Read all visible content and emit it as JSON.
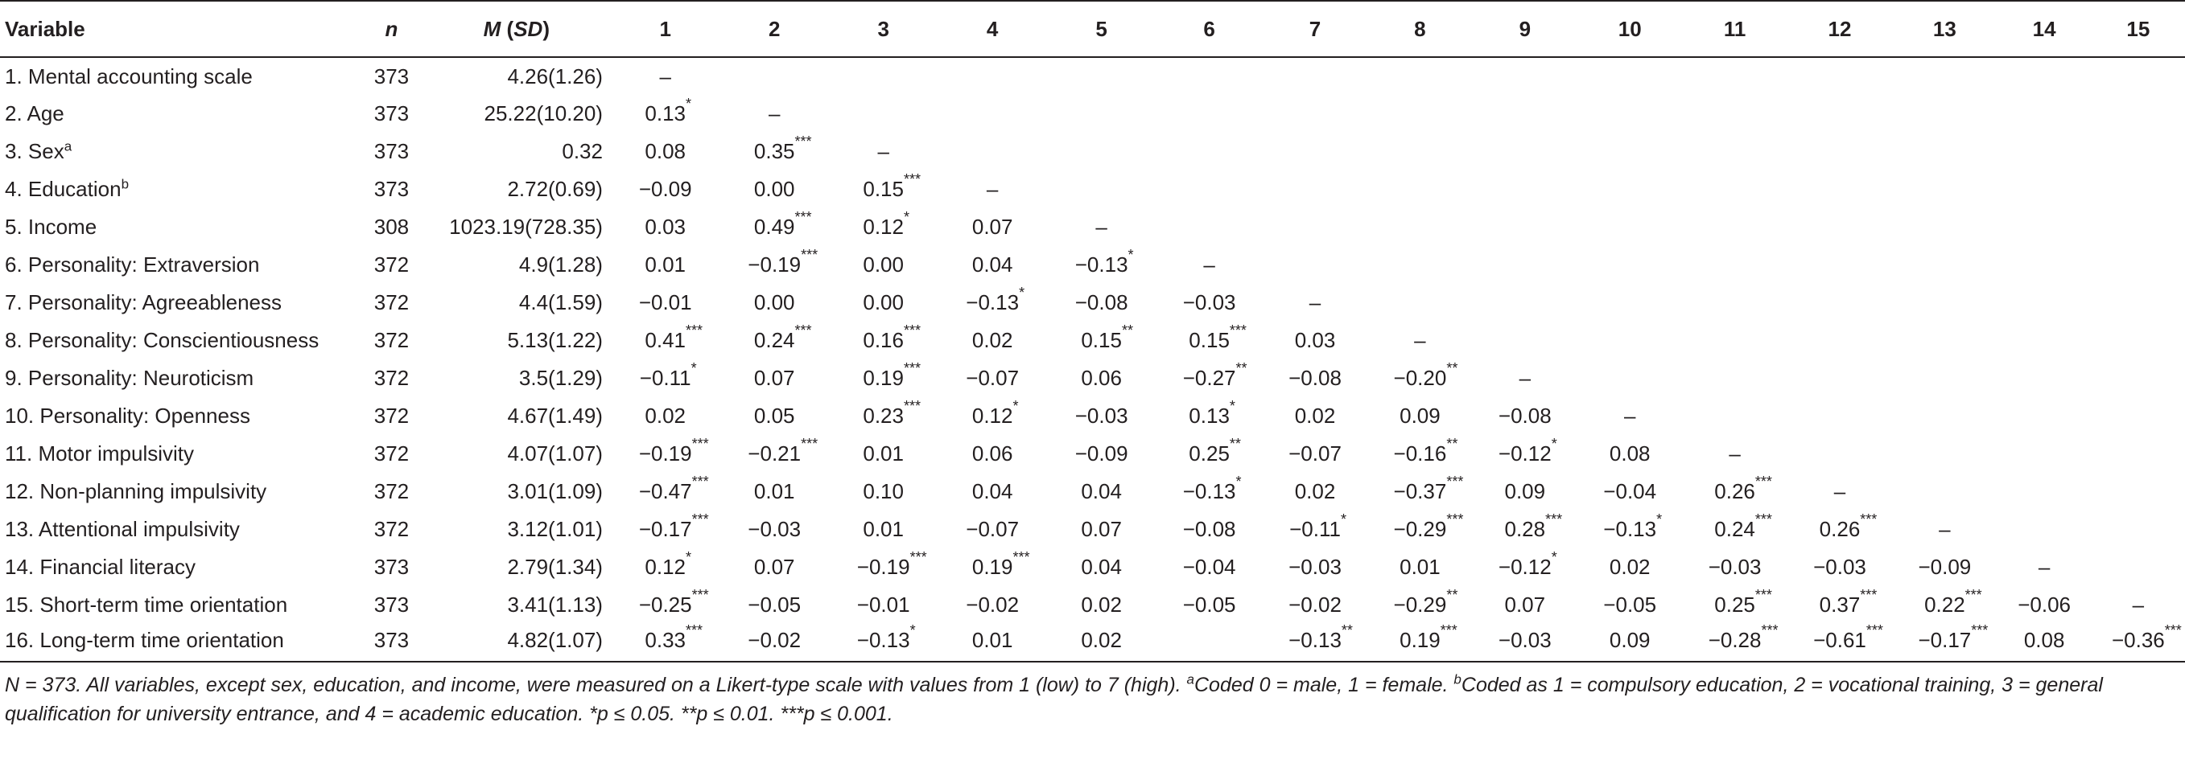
{
  "table": {
    "headers": {
      "variable": "Variable",
      "n": "n",
      "m_italic": "M",
      "sd_open": " (",
      "sd_italic": "SD",
      "sd_close": ")",
      "cols": [
        "1",
        "2",
        "3",
        "4",
        "5",
        "6",
        "7",
        "8",
        "9",
        "10",
        "11",
        "12",
        "13",
        "14",
        "15"
      ]
    },
    "rows": [
      {
        "label": "1. Mental accounting scale",
        "sup": "",
        "n": "373",
        "msd": "4.26(1.26)",
        "cells": [
          {
            "v": "–",
            "s": ""
          },
          {
            "v": "",
            "s": ""
          },
          {
            "v": "",
            "s": ""
          },
          {
            "v": "",
            "s": ""
          },
          {
            "v": "",
            "s": ""
          },
          {
            "v": "",
            "s": ""
          },
          {
            "v": "",
            "s": ""
          },
          {
            "v": "",
            "s": ""
          },
          {
            "v": "",
            "s": ""
          },
          {
            "v": "",
            "s": ""
          },
          {
            "v": "",
            "s": ""
          },
          {
            "v": "",
            "s": ""
          },
          {
            "v": "",
            "s": ""
          },
          {
            "v": "",
            "s": ""
          },
          {
            "v": "",
            "s": ""
          }
        ]
      },
      {
        "label": "2. Age",
        "sup": "",
        "n": "373",
        "msd": "25.22(10.20)",
        "cells": [
          {
            "v": "0.13",
            "s": "*"
          },
          {
            "v": "–",
            "s": ""
          },
          {
            "v": "",
            "s": ""
          },
          {
            "v": "",
            "s": ""
          },
          {
            "v": "",
            "s": ""
          },
          {
            "v": "",
            "s": ""
          },
          {
            "v": "",
            "s": ""
          },
          {
            "v": "",
            "s": ""
          },
          {
            "v": "",
            "s": ""
          },
          {
            "v": "",
            "s": ""
          },
          {
            "v": "",
            "s": ""
          },
          {
            "v": "",
            "s": ""
          },
          {
            "v": "",
            "s": ""
          },
          {
            "v": "",
            "s": ""
          },
          {
            "v": "",
            "s": ""
          }
        ]
      },
      {
        "label": "3. Sex",
        "sup": "a",
        "n": "373",
        "msd": "0.32",
        "cells": [
          {
            "v": "0.08",
            "s": ""
          },
          {
            "v": "0.35",
            "s": "***"
          },
          {
            "v": "–",
            "s": ""
          },
          {
            "v": "",
            "s": ""
          },
          {
            "v": "",
            "s": ""
          },
          {
            "v": "",
            "s": ""
          },
          {
            "v": "",
            "s": ""
          },
          {
            "v": "",
            "s": ""
          },
          {
            "v": "",
            "s": ""
          },
          {
            "v": "",
            "s": ""
          },
          {
            "v": "",
            "s": ""
          },
          {
            "v": "",
            "s": ""
          },
          {
            "v": "",
            "s": ""
          },
          {
            "v": "",
            "s": ""
          },
          {
            "v": "",
            "s": ""
          }
        ]
      },
      {
        "label": "4. Education",
        "sup": "b",
        "n": "373",
        "msd": "2.72(0.69)",
        "cells": [
          {
            "v": "−0.09",
            "s": ""
          },
          {
            "v": "0.00",
            "s": ""
          },
          {
            "v": "0.15",
            "s": "***"
          },
          {
            "v": "–",
            "s": ""
          },
          {
            "v": "",
            "s": ""
          },
          {
            "v": "",
            "s": ""
          },
          {
            "v": "",
            "s": ""
          },
          {
            "v": "",
            "s": ""
          },
          {
            "v": "",
            "s": ""
          },
          {
            "v": "",
            "s": ""
          },
          {
            "v": "",
            "s": ""
          },
          {
            "v": "",
            "s": ""
          },
          {
            "v": "",
            "s": ""
          },
          {
            "v": "",
            "s": ""
          },
          {
            "v": "",
            "s": ""
          }
        ]
      },
      {
        "label": "5. Income",
        "sup": "",
        "n": "308",
        "msd": "1023.19(728.35)",
        "cells": [
          {
            "v": "0.03",
            "s": ""
          },
          {
            "v": "0.49",
            "s": "***"
          },
          {
            "v": "0.12",
            "s": "*"
          },
          {
            "v": "0.07",
            "s": ""
          },
          {
            "v": "–",
            "s": ""
          },
          {
            "v": "",
            "s": ""
          },
          {
            "v": "",
            "s": ""
          },
          {
            "v": "",
            "s": ""
          },
          {
            "v": "",
            "s": ""
          },
          {
            "v": "",
            "s": ""
          },
          {
            "v": "",
            "s": ""
          },
          {
            "v": "",
            "s": ""
          },
          {
            "v": "",
            "s": ""
          },
          {
            "v": "",
            "s": ""
          },
          {
            "v": "",
            "s": ""
          }
        ]
      },
      {
        "label": "6. Personality: Extraversion",
        "sup": "",
        "n": "372",
        "msd": "4.9(1.28)",
        "cells": [
          {
            "v": "0.01",
            "s": ""
          },
          {
            "v": "−0.19",
            "s": "***"
          },
          {
            "v": "0.00",
            "s": ""
          },
          {
            "v": "0.04",
            "s": ""
          },
          {
            "v": "−0.13",
            "s": "*"
          },
          {
            "v": "–",
            "s": ""
          },
          {
            "v": "",
            "s": ""
          },
          {
            "v": "",
            "s": ""
          },
          {
            "v": "",
            "s": ""
          },
          {
            "v": "",
            "s": ""
          },
          {
            "v": "",
            "s": ""
          },
          {
            "v": "",
            "s": ""
          },
          {
            "v": "",
            "s": ""
          },
          {
            "v": "",
            "s": ""
          },
          {
            "v": "",
            "s": ""
          }
        ]
      },
      {
        "label": "7. Personality: Agreeableness",
        "sup": "",
        "n": "372",
        "msd": "4.4(1.59)",
        "cells": [
          {
            "v": "−0.01",
            "s": ""
          },
          {
            "v": "0.00",
            "s": ""
          },
          {
            "v": "0.00",
            "s": ""
          },
          {
            "v": "−0.13",
            "s": "*"
          },
          {
            "v": "−0.08",
            "s": ""
          },
          {
            "v": "−0.03",
            "s": ""
          },
          {
            "v": "–",
            "s": ""
          },
          {
            "v": "",
            "s": ""
          },
          {
            "v": "",
            "s": ""
          },
          {
            "v": "",
            "s": ""
          },
          {
            "v": "",
            "s": ""
          },
          {
            "v": "",
            "s": ""
          },
          {
            "v": "",
            "s": ""
          },
          {
            "v": "",
            "s": ""
          },
          {
            "v": "",
            "s": ""
          }
        ]
      },
      {
        "label": "8. Personality: Conscientiousness",
        "sup": "",
        "n": "372",
        "msd": "5.13(1.22)",
        "cells": [
          {
            "v": "0.41",
            "s": "***"
          },
          {
            "v": "0.24",
            "s": "***"
          },
          {
            "v": "0.16",
            "s": "***"
          },
          {
            "v": "0.02",
            "s": ""
          },
          {
            "v": "0.15",
            "s": "**"
          },
          {
            "v": "0.15",
            "s": "***"
          },
          {
            "v": "0.03",
            "s": ""
          },
          {
            "v": "–",
            "s": ""
          },
          {
            "v": "",
            "s": ""
          },
          {
            "v": "",
            "s": ""
          },
          {
            "v": "",
            "s": ""
          },
          {
            "v": "",
            "s": ""
          },
          {
            "v": "",
            "s": ""
          },
          {
            "v": "",
            "s": ""
          },
          {
            "v": "",
            "s": ""
          }
        ]
      },
      {
        "label": "9. Personality: Neuroticism",
        "sup": "",
        "n": "372",
        "msd": "3.5(1.29)",
        "cells": [
          {
            "v": "−0.11",
            "s": "*"
          },
          {
            "v": "0.07",
            "s": ""
          },
          {
            "v": "0.19",
            "s": "***"
          },
          {
            "v": "−0.07",
            "s": ""
          },
          {
            "v": "0.06",
            "s": ""
          },
          {
            "v": "−0.27",
            "s": "**"
          },
          {
            "v": "−0.08",
            "s": ""
          },
          {
            "v": "−0.20",
            "s": "**"
          },
          {
            "v": "–",
            "s": ""
          },
          {
            "v": "",
            "s": ""
          },
          {
            "v": "",
            "s": ""
          },
          {
            "v": "",
            "s": ""
          },
          {
            "v": "",
            "s": ""
          },
          {
            "v": "",
            "s": ""
          },
          {
            "v": "",
            "s": ""
          }
        ]
      },
      {
        "label": "10. Personality: Openness",
        "sup": "",
        "n": "372",
        "msd": "4.67(1.49)",
        "cells": [
          {
            "v": "0.02",
            "s": ""
          },
          {
            "v": "0.05",
            "s": ""
          },
          {
            "v": "0.23",
            "s": "***"
          },
          {
            "v": "0.12",
            "s": "*"
          },
          {
            "v": "−0.03",
            "s": ""
          },
          {
            "v": "0.13",
            "s": "*"
          },
          {
            "v": "0.02",
            "s": ""
          },
          {
            "v": "0.09",
            "s": ""
          },
          {
            "v": "−0.08",
            "s": ""
          },
          {
            "v": "–",
            "s": ""
          },
          {
            "v": "",
            "s": ""
          },
          {
            "v": "",
            "s": ""
          },
          {
            "v": "",
            "s": ""
          },
          {
            "v": "",
            "s": ""
          },
          {
            "v": "",
            "s": ""
          }
        ]
      },
      {
        "label": "11. Motor impulsivity",
        "sup": "",
        "n": "372",
        "msd": "4.07(1.07)",
        "cells": [
          {
            "v": "−0.19",
            "s": "***"
          },
          {
            "v": "−0.21",
            "s": "***"
          },
          {
            "v": "0.01",
            "s": ""
          },
          {
            "v": "0.06",
            "s": ""
          },
          {
            "v": "−0.09",
            "s": ""
          },
          {
            "v": "0.25",
            "s": "**"
          },
          {
            "v": "−0.07",
            "s": ""
          },
          {
            "v": "−0.16",
            "s": "**"
          },
          {
            "v": "−0.12",
            "s": "*"
          },
          {
            "v": "0.08",
            "s": ""
          },
          {
            "v": "–",
            "s": ""
          },
          {
            "v": "",
            "s": ""
          },
          {
            "v": "",
            "s": ""
          },
          {
            "v": "",
            "s": ""
          },
          {
            "v": "",
            "s": ""
          }
        ]
      },
      {
        "label": "12. Non-planning impulsivity",
        "sup": "",
        "n": "372",
        "msd": "3.01(1.09)",
        "cells": [
          {
            "v": "−0.47",
            "s": "***"
          },
          {
            "v": "0.01",
            "s": ""
          },
          {
            "v": "0.10",
            "s": ""
          },
          {
            "v": "0.04",
            "s": ""
          },
          {
            "v": "0.04",
            "s": ""
          },
          {
            "v": "−0.13",
            "s": "*"
          },
          {
            "v": "0.02",
            "s": ""
          },
          {
            "v": "−0.37",
            "s": "***"
          },
          {
            "v": "0.09",
            "s": ""
          },
          {
            "v": "−0.04",
            "s": ""
          },
          {
            "v": "0.26",
            "s": "***"
          },
          {
            "v": "–",
            "s": ""
          },
          {
            "v": "",
            "s": ""
          },
          {
            "v": "",
            "s": ""
          },
          {
            "v": "",
            "s": ""
          }
        ]
      },
      {
        "label": "13. Attentional impulsivity",
        "sup": "",
        "n": "372",
        "msd": "3.12(1.01)",
        "cells": [
          {
            "v": "−0.17",
            "s": "***"
          },
          {
            "v": "−0.03",
            "s": ""
          },
          {
            "v": "0.01",
            "s": ""
          },
          {
            "v": "−0.07",
            "s": ""
          },
          {
            "v": "0.07",
            "s": ""
          },
          {
            "v": "−0.08",
            "s": ""
          },
          {
            "v": "−0.11",
            "s": "*"
          },
          {
            "v": "−0.29",
            "s": "***"
          },
          {
            "v": "0.28",
            "s": "***"
          },
          {
            "v": "−0.13",
            "s": "*"
          },
          {
            "v": "0.24",
            "s": "***"
          },
          {
            "v": "0.26",
            "s": "***"
          },
          {
            "v": "–",
            "s": ""
          },
          {
            "v": "",
            "s": ""
          },
          {
            "v": "",
            "s": ""
          }
        ]
      },
      {
        "label": "14. Financial literacy",
        "sup": "",
        "n": "373",
        "msd": "2.79(1.34)",
        "cells": [
          {
            "v": "0.12",
            "s": "*"
          },
          {
            "v": "0.07",
            "s": ""
          },
          {
            "v": "−0.19",
            "s": "***"
          },
          {
            "v": "0.19",
            "s": "***"
          },
          {
            "v": "0.04",
            "s": ""
          },
          {
            "v": "−0.04",
            "s": ""
          },
          {
            "v": "−0.03",
            "s": ""
          },
          {
            "v": "0.01",
            "s": ""
          },
          {
            "v": "−0.12",
            "s": "*"
          },
          {
            "v": "0.02",
            "s": ""
          },
          {
            "v": "−0.03",
            "s": ""
          },
          {
            "v": "−0.03",
            "s": ""
          },
          {
            "v": "−0.09",
            "s": ""
          },
          {
            "v": "–",
            "s": ""
          },
          {
            "v": "",
            "s": ""
          }
        ]
      },
      {
        "label": "15. Short-term time orientation",
        "sup": "",
        "n": "373",
        "msd": "3.41(1.13)",
        "cells": [
          {
            "v": "−0.25",
            "s": "***"
          },
          {
            "v": "−0.05",
            "s": ""
          },
          {
            "v": "−0.01",
            "s": ""
          },
          {
            "v": "−0.02",
            "s": ""
          },
          {
            "v": "0.02",
            "s": ""
          },
          {
            "v": "−0.05",
            "s": ""
          },
          {
            "v": "−0.02",
            "s": ""
          },
          {
            "v": "−0.29",
            "s": "**"
          },
          {
            "v": "0.07",
            "s": ""
          },
          {
            "v": "−0.05",
            "s": ""
          },
          {
            "v": "0.25",
            "s": "***"
          },
          {
            "v": "0.37",
            "s": "***"
          },
          {
            "v": "0.22",
            "s": "***"
          },
          {
            "v": "−0.06",
            "s": ""
          },
          {
            "v": "–",
            "s": ""
          }
        ]
      },
      {
        "label": "16. Long-term time orientation",
        "sup": "",
        "n": "373",
        "msd": "4.82(1.07)",
        "cells": [
          {
            "v": "0.33",
            "s": "***"
          },
          {
            "v": "−0.02",
            "s": ""
          },
          {
            "v": "−0.13",
            "s": "*"
          },
          {
            "v": "0.01",
            "s": ""
          },
          {
            "v": "0.02",
            "s": ""
          },
          {
            "v": "",
            "s": ""
          },
          {
            "v": "−0.13",
            "s": "**"
          },
          {
            "v": "0.19",
            "s": "***"
          },
          {
            "v": "−0.03",
            "s": ""
          },
          {
            "v": "0.09",
            "s": ""
          },
          {
            "v": "−0.28",
            "s": "***"
          },
          {
            "v": "−0.61",
            "s": "***"
          },
          {
            "v": "−0.17",
            "s": "***"
          },
          {
            "v": "0.08",
            "s": ""
          },
          {
            "v": "−0.36",
            "s": "***"
          }
        ]
      }
    ]
  },
  "footnote": {
    "part1": "N = 373. All variables, except sex, education, and income, were measured on a Likert-type scale with values from 1 (low) to 7 (high). ",
    "sup_a": "a",
    "part2": "Coded 0 = male, 1 = female. ",
    "sup_b": "b",
    "part3": "Coded as 1 = compulsory education, 2 = vocational training, 3 = general qualification for university entrance, and 4 = academic education. *p ≤ 0.05. **p ≤ 0.01. ***p ≤ 0.001."
  }
}
